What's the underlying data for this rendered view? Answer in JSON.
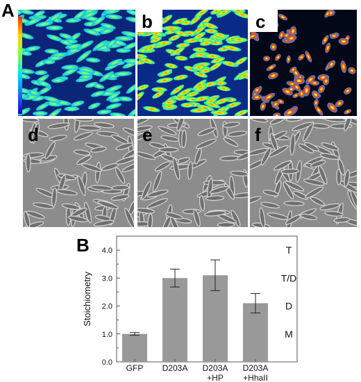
{
  "figure": {
    "panel_A_label": "A",
    "panel_B_label": "B",
    "heat_panels": [
      {
        "label": "b",
        "style": "dense"
      },
      {
        "label": "c",
        "style": "sparse"
      }
    ],
    "bright_panels": [
      {
        "label": "d"
      },
      {
        "label": "e"
      },
      {
        "label": "f"
      }
    ],
    "colorbar": [
      "#ff2a00",
      "#ffd400",
      "#7cff4a",
      "#00e0ff",
      "#1e6bff",
      "#1a00c8"
    ]
  },
  "chart_data": {
    "type": "bar",
    "categories": [
      [
        "GFP"
      ],
      [
        "D203A"
      ],
      [
        "D203A",
        "+HP"
      ],
      [
        "D203A",
        "+HhaII"
      ]
    ],
    "values": [
      1.0,
      3.0,
      3.1,
      2.1
    ],
    "errors_upper": [
      0.05,
      0.32,
      0.55,
      0.35
    ],
    "errors_lower": [
      0.05,
      0.32,
      0.55,
      0.35
    ],
    "ylabel": "Stoichiometry",
    "ylim": [
      0.0,
      4.5
    ],
    "yticks": [
      0.0,
      1.0,
      2.0,
      3.0,
      4.0
    ],
    "ytick_labels": [
      "0.0",
      "1.0",
      "2.0",
      "3.0",
      "4.0"
    ],
    "state_labels": [
      {
        "text": "T",
        "value": 4.0
      },
      {
        "text": "T/D",
        "value": 3.0
      },
      {
        "text": "D",
        "value": 2.0
      },
      {
        "text": "M",
        "value": 1.0
      }
    ],
    "bar_color": "#999999",
    "grid": false
  }
}
